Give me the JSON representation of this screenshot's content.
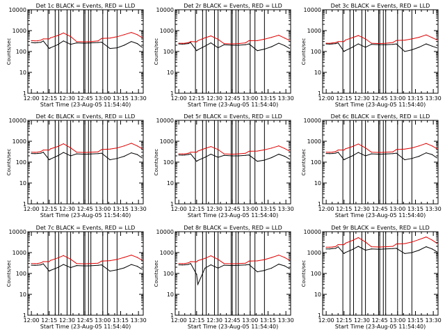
{
  "figure": {
    "xtick_labels": [
      "12:00",
      "12:15",
      "12:30",
      "12:45",
      "13:00",
      "13:15",
      "13:30"
    ],
    "ytick_labels": [
      "1",
      "10",
      "100",
      "1000",
      "10000"
    ],
    "colors": {
      "events": "#000000",
      "lld": "#e00000",
      "axes": "#000000",
      "background": "#ffffff"
    }
  },
  "chart_data": [
    {
      "type": "line",
      "title": "Det 1c BLACK = Events, RED = LLD",
      "xlabel": "Start Time (23-Aug-05 11:54:40)",
      "ylabel": "Counts/sec",
      "x_unit": "minutes after 12:00",
      "xlim": [
        -3,
        94
      ],
      "ylim": [
        1,
        10000
      ],
      "y_scale": "log",
      "x": [
        0,
        3,
        5,
        8,
        10,
        15,
        16,
        22,
        27,
        33,
        38,
        45,
        50,
        56,
        59,
        66,
        72,
        78,
        84,
        89,
        93
      ],
      "series": [
        {
          "name": "Events",
          "color": "#000000",
          "values": [
            270,
            260,
            265,
            275,
            320,
            140,
            150,
            210,
            320,
            220,
            260,
            250,
            260,
            270,
            280,
            140,
            150,
            200,
            300,
            240,
            160
          ]
        },
        {
          "name": "LLD",
          "color": "#e00000",
          "values": [
            330,
            320,
            325,
            350,
            400,
            400,
            450,
            580,
            770,
            520,
            300,
            290,
            300,
            320,
            420,
            440,
            510,
            640,
            820,
            640,
            460
          ]
        }
      ],
      "vertical_lines": [
        14,
        20,
        23,
        30,
        33,
        44,
        45,
        48,
        50,
        60,
        64,
        72
      ]
    },
    {
      "type": "line",
      "title": "Det 2r BLACK = Events, RED = LLD",
      "xlabel": "Start Time (23-Aug-05 11:54:40)",
      "ylabel": "Counts/sec",
      "x_unit": "minutes after 12:00",
      "xlim": [
        -3,
        94
      ],
      "ylim": [
        1,
        10000
      ],
      "y_scale": "log",
      "x": [
        0,
        3,
        5,
        8,
        10,
        15,
        16,
        22,
        27,
        33,
        38,
        45,
        50,
        56,
        59,
        66,
        72,
        78,
        84,
        89,
        93
      ],
      "series": [
        {
          "name": "Events",
          "color": "#000000",
          "values": [
            230,
            225,
            230,
            240,
            270,
            110,
            120,
            180,
            260,
            150,
            210,
            200,
            200,
            210,
            230,
            110,
            130,
            170,
            250,
            190,
            140
          ]
        },
        {
          "name": "LLD",
          "color": "#e00000",
          "values": [
            250,
            245,
            250,
            265,
            300,
            290,
            330,
            450,
            560,
            380,
            240,
            230,
            240,
            260,
            330,
            330,
            390,
            480,
            600,
            440,
            340
          ]
        }
      ],
      "vertical_lines": [
        14,
        20,
        23,
        30,
        33,
        44,
        45,
        48,
        50,
        60,
        64,
        72
      ]
    },
    {
      "type": "line",
      "title": "Det 3c BLACK = Events, RED = LLD",
      "xlabel": "Start Time (23-Aug-05 11:54:40)",
      "ylabel": "Counts/sec",
      "x_unit": "minutes after 12:00",
      "xlim": [
        -3,
        94
      ],
      "ylim": [
        1,
        10000
      ],
      "y_scale": "log",
      "x": [
        0,
        3,
        5,
        8,
        10,
        15,
        16,
        22,
        27,
        33,
        38,
        45,
        50,
        56,
        59,
        66,
        72,
        78,
        84,
        89,
        93
      ],
      "series": [
        {
          "name": "Events",
          "color": "#000000",
          "values": [
            230,
            225,
            230,
            240,
            260,
            100,
            110,
            160,
            230,
            160,
            220,
            210,
            210,
            220,
            230,
            100,
            120,
            160,
            230,
            180,
            150
          ]
        },
        {
          "name": "LLD",
          "color": "#e00000",
          "values": [
            250,
            245,
            255,
            270,
            300,
            300,
            350,
            460,
            580,
            400,
            250,
            240,
            250,
            270,
            340,
            350,
            400,
            480,
            620,
            460,
            360
          ]
        }
      ],
      "vertical_lines": [
        14,
        20,
        23,
        30,
        33,
        44,
        45,
        48,
        50,
        60,
        64,
        72
      ]
    },
    {
      "type": "line",
      "title": "Det 4c BLACK = Events, RED = LLD",
      "xlabel": "Start Time (23-Aug-05 11:54:40)",
      "ylabel": "Counts/sec",
      "x_unit": "minutes after 12:00",
      "xlim": [
        -3,
        94
      ],
      "ylim": [
        1,
        10000
      ],
      "y_scale": "log",
      "x": [
        0,
        3,
        5,
        8,
        10,
        15,
        16,
        22,
        27,
        33,
        38,
        45,
        50,
        56,
        59,
        66,
        72,
        78,
        84,
        89,
        93
      ],
      "series": [
        {
          "name": "Events",
          "color": "#000000",
          "values": [
            260,
            255,
            260,
            270,
            300,
            130,
            140,
            200,
            290,
            200,
            250,
            240,
            245,
            255,
            270,
            130,
            150,
            190,
            280,
            230,
            160
          ]
        },
        {
          "name": "LLD",
          "color": "#e00000",
          "values": [
            300,
            295,
            300,
            320,
            380,
            380,
            430,
            560,
            760,
            480,
            300,
            290,
            300,
            310,
            400,
            420,
            480,
            600,
            800,
            600,
            440
          ]
        }
      ],
      "vertical_lines": [
        14,
        20,
        23,
        30,
        33,
        44,
        45,
        48,
        50,
        60,
        64,
        72
      ]
    },
    {
      "type": "line",
      "title": "Det 5r BLACK = Events, RED = LLD",
      "xlabel": "Start Time (23-Aug-05 11:54:40)",
      "ylabel": "Counts/sec",
      "x_unit": "minutes after 12:00",
      "xlim": [
        -3,
        94
      ],
      "ylim": [
        1,
        10000
      ],
      "y_scale": "log",
      "x": [
        0,
        3,
        5,
        8,
        10,
        15,
        16,
        22,
        27,
        33,
        38,
        45,
        50,
        56,
        59,
        66,
        72,
        78,
        84,
        89,
        93
      ],
      "series": [
        {
          "name": "Events",
          "color": "#000000",
          "values": [
            220,
            215,
            220,
            230,
            250,
            110,
            120,
            170,
            240,
            170,
            210,
            200,
            200,
            210,
            220,
            110,
            125,
            165,
            240,
            190,
            140
          ]
        },
        {
          "name": "LLD",
          "color": "#e00000",
          "values": [
            250,
            245,
            250,
            265,
            300,
            300,
            340,
            450,
            560,
            400,
            250,
            240,
            250,
            265,
            330,
            340,
            390,
            470,
            600,
            450,
            340
          ]
        }
      ],
      "vertical_lines": [
        14,
        20,
        23,
        30,
        33,
        44,
        45,
        48,
        50,
        60,
        64,
        72
      ]
    },
    {
      "type": "line",
      "title": "Det 6c BLACK = Events, RED = LLD",
      "xlabel": "Start Time (23-Aug-05 11:54:40)",
      "ylabel": "Counts/sec",
      "x_unit": "minutes after 12:00",
      "xlim": [
        -3,
        94
      ],
      "ylim": [
        1,
        10000
      ],
      "y_scale": "log",
      "x": [
        0,
        3,
        5,
        8,
        10,
        15,
        16,
        22,
        27,
        33,
        38,
        45,
        50,
        56,
        59,
        66,
        72,
        78,
        84,
        89,
        93
      ],
      "series": [
        {
          "name": "Events",
          "color": "#000000",
          "values": [
            260,
            255,
            260,
            270,
            300,
            130,
            140,
            200,
            290,
            200,
            250,
            240,
            245,
            255,
            270,
            130,
            150,
            190,
            280,
            230,
            160
          ]
        },
        {
          "name": "LLD",
          "color": "#e00000",
          "values": [
            300,
            295,
            300,
            320,
            380,
            380,
            430,
            560,
            740,
            480,
            300,
            290,
            300,
            310,
            400,
            420,
            480,
            600,
            780,
            600,
            440
          ]
        }
      ],
      "vertical_lines": [
        14,
        20,
        23,
        30,
        33,
        44,
        45,
        48,
        50,
        60,
        64,
        72
      ]
    },
    {
      "type": "line",
      "title": "Det 7c BLACK = Events, RED = LLD",
      "xlabel": "Start Time (23-Aug-05 11:54:40)",
      "ylabel": "Counts/sec",
      "x_unit": "minutes after 12:00",
      "xlim": [
        -3,
        94
      ],
      "ylim": [
        1,
        10000
      ],
      "y_scale": "log",
      "x": [
        0,
        3,
        5,
        8,
        10,
        15,
        16,
        22,
        27,
        33,
        38,
        45,
        50,
        56,
        59,
        66,
        72,
        78,
        84,
        89,
        93
      ],
      "series": [
        {
          "name": "Events",
          "color": "#000000",
          "values": [
            250,
            245,
            250,
            260,
            290,
            130,
            140,
            190,
            270,
            190,
            240,
            230,
            235,
            245,
            260,
            130,
            150,
            185,
            270,
            220,
            160
          ]
        },
        {
          "name": "LLD",
          "color": "#e00000",
          "values": [
            300,
            295,
            300,
            320,
            370,
            370,
            420,
            550,
            720,
            480,
            300,
            290,
            300,
            310,
            390,
            410,
            470,
            590,
            760,
            590,
            430
          ]
        }
      ],
      "vertical_lines": [
        14,
        20,
        23,
        30,
        33,
        44,
        45,
        48,
        50,
        60,
        64,
        72
      ]
    },
    {
      "type": "line",
      "title": "Det 8r BLACK = Events, RED = LLD",
      "xlabel": "Start Time (23-Aug-05 11:54:40)",
      "ylabel": "Counts/sec",
      "x_unit": "minutes after 12:00",
      "xlim": [
        -3,
        94
      ],
      "ylim": [
        1,
        10000
      ],
      "y_scale": "log",
      "x": [
        0,
        3,
        5,
        8,
        10,
        15,
        16,
        22,
        27,
        33,
        38,
        45,
        50,
        56,
        59,
        66,
        72,
        78,
        84,
        89,
        93
      ],
      "series": [
        {
          "name": "Events",
          "color": "#000000",
          "values": [
            260,
            255,
            260,
            270,
            300,
            90,
            30,
            180,
            260,
            180,
            250,
            240,
            245,
            255,
            270,
            120,
            140,
            180,
            280,
            230,
            170
          ]
        },
        {
          "name": "LLD",
          "color": "#e00000",
          "values": [
            300,
            295,
            300,
            320,
            370,
            360,
            410,
            530,
            700,
            470,
            300,
            290,
            300,
            310,
            390,
            400,
            460,
            580,
            760,
            580,
            430
          ]
        }
      ],
      "vertical_lines": [
        14,
        20,
        23,
        30,
        33,
        44,
        45,
        48,
        50,
        60,
        64,
        72
      ]
    },
    {
      "type": "line",
      "title": "Det 9r BLACK = Events, RED = LLD",
      "xlabel": "Start Time (23-Aug-05 11:54:40)",
      "ylabel": "Counts/sec",
      "x_unit": "minutes after 12:00",
      "xlim": [
        -3,
        94
      ],
      "ylim": [
        1,
        10000
      ],
      "y_scale": "log",
      "x": [
        0,
        3,
        5,
        8,
        10,
        15,
        16,
        22,
        27,
        33,
        38,
        45,
        50,
        56,
        59,
        66,
        72,
        78,
        84,
        89,
        93
      ],
      "series": [
        {
          "name": "Events",
          "color": "#000000",
          "values": [
            1500,
            1500,
            1550,
            1600,
            1900,
            900,
            1000,
            1400,
            2000,
            1300,
            1500,
            1450,
            1500,
            1550,
            1600,
            900,
            1000,
            1300,
            1900,
            1500,
            1100
          ]
        },
        {
          "name": "LLD",
          "color": "#e00000",
          "values": [
            1800,
            1800,
            1850,
            1950,
            2400,
            2400,
            2800,
            3800,
            5200,
            3200,
            1900,
            1850,
            1900,
            2000,
            2600,
            2700,
            3200,
            4200,
            5600,
            4000,
            2800
          ]
        }
      ],
      "vertical_lines": [
        14,
        20,
        23,
        30,
        33,
        44,
        45,
        48,
        50,
        60,
        64,
        72
      ]
    }
  ]
}
